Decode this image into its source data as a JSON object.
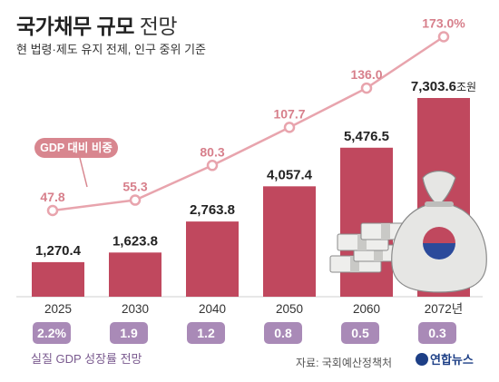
{
  "header": {
    "title_bold": "국가채무 규모",
    "title_light": "전망",
    "subtitle": "현 법령·제도 유지 전제, 인구 중위 기준"
  },
  "chart_data": {
    "type": "bar",
    "categories": [
      "2025",
      "2030",
      "2040",
      "2050",
      "2060",
      "2072년"
    ],
    "series": [
      {
        "name": "",
        "type": "bar",
        "values": [
          1270.4,
          1623.8,
          2763.8,
          4057.4,
          5476.5,
          7303.6
        ],
        "labels": [
          "1,270.4",
          "1,623.8",
          "2,763.8",
          "4,057.4",
          "5,476.5",
          "7,303.6"
        ],
        "unit": "조원",
        "color": "#c0485e"
      },
      {
        "name": "GDP 대비 비중",
        "type": "line",
        "values": [
          47.8,
          55.3,
          80.3,
          107.7,
          136.0,
          173.0
        ],
        "labels": [
          "47.8",
          "55.3",
          "80.3",
          "107.7",
          "136.0",
          "173.0%"
        ],
        "color": "#e8a4ad"
      }
    ],
    "growth": {
      "label": "실질 GDP 성장률 전망",
      "values": [
        "2.2%",
        "1.9",
        "1.2",
        "0.8",
        "0.5",
        "0.3"
      ]
    }
  },
  "footer": {
    "source": "자료: 국회예산정책처",
    "logo": "연합뉴스"
  }
}
